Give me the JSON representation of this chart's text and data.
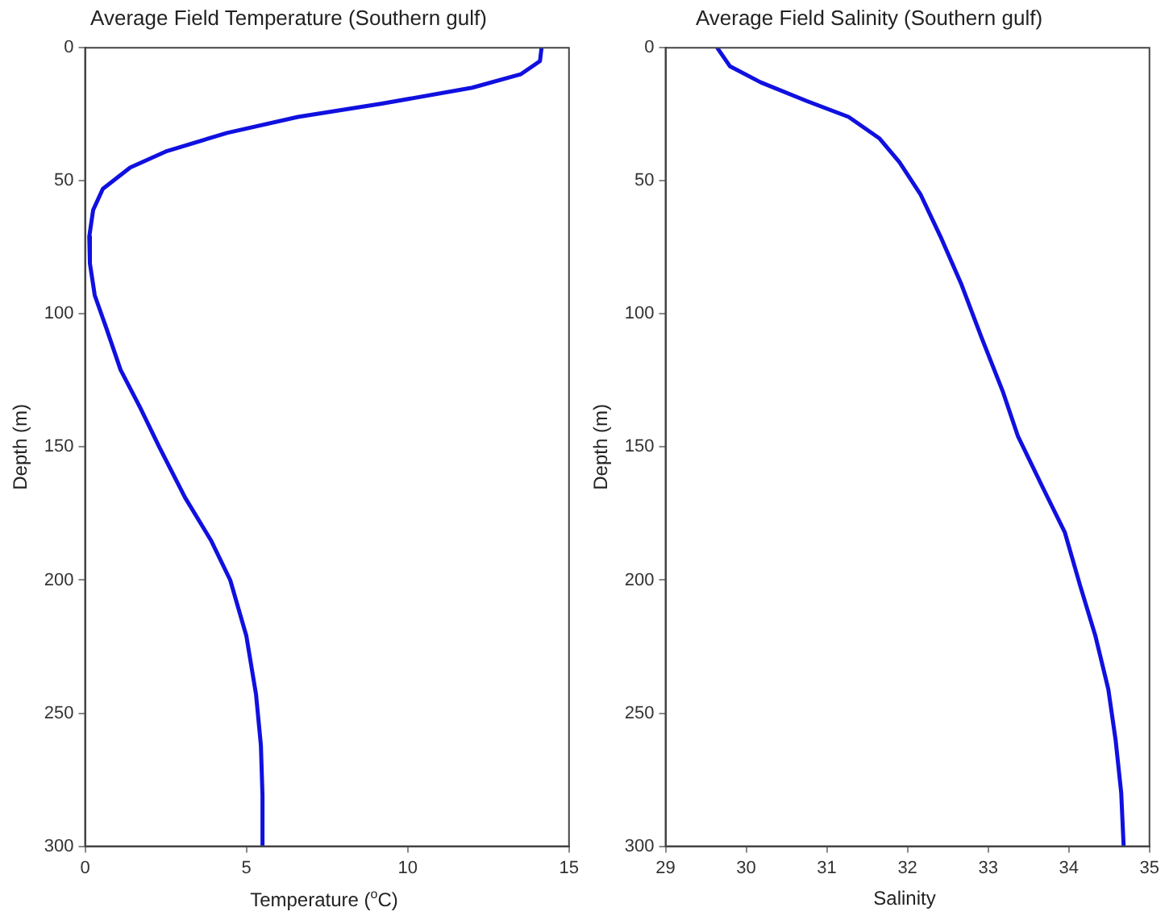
{
  "chart_data": [
    {
      "type": "line",
      "title": "Average Field Temperature (Southern gulf)",
      "xlabel": "Temperature ($^{o}$C)",
      "ylabel": "Depth (m)",
      "x": [
        14.15,
        14.1,
        13.5,
        12.0,
        9.2,
        6.6,
        4.4,
        2.5,
        1.4,
        0.55,
        0.25,
        0.13,
        0.15,
        0.3,
        0.65,
        1.1,
        1.7,
        2.3,
        3.1,
        3.9,
        4.5,
        5.0,
        5.3,
        5.45,
        5.5,
        5.5
      ],
      "values": [
        0,
        5,
        10,
        15,
        21,
        26,
        32,
        39,
        45,
        53,
        61,
        71,
        81,
        93,
        105,
        121,
        135,
        150,
        169,
        185,
        200,
        221,
        243,
        262,
        281,
        300
      ],
      "color": "#1010e0",
      "marker": "none",
      "line_style": "solid",
      "grid": false,
      "legend": false,
      "xlim": [
        0,
        15
      ],
      "xticks": [
        0,
        5,
        10,
        15
      ],
      "ylim": [
        300,
        0
      ],
      "yticks": [
        0,
        50,
        100,
        150,
        200,
        250,
        300
      ]
    },
    {
      "type": "line",
      "title": "Average Field Salinity (Southern gulf)",
      "xlabel": "Salinity",
      "ylabel": "Depth (m)",
      "x": [
        29.64,
        29.8,
        30.18,
        30.75,
        31.27,
        31.65,
        31.9,
        32.16,
        32.41,
        32.67,
        32.92,
        33.18,
        33.37,
        33.69,
        33.95,
        34.14,
        34.33,
        34.49,
        34.58,
        34.65,
        34.68
      ],
      "values": [
        0,
        7,
        13,
        20,
        26,
        34,
        43,
        55,
        71,
        89,
        109,
        129,
        146,
        166,
        182,
        202,
        221,
        241,
        260,
        280,
        300
      ],
      "color": "#1010e0",
      "marker": "none",
      "line_style": "solid",
      "grid": false,
      "legend": false,
      "xlim": [
        29,
        35
      ],
      "xticks": [
        29,
        30,
        31,
        32,
        33,
        34,
        35
      ],
      "ylim": [
        300,
        0
      ],
      "yticks": [
        0,
        50,
        100,
        150,
        200,
        250,
        300
      ]
    }
  ]
}
